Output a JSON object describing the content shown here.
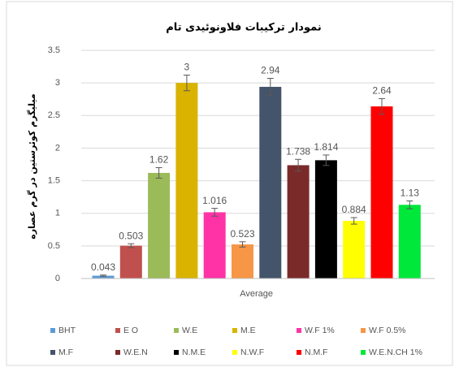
{
  "chart_data": {
    "type": "bar",
    "title": "نمودار ترکیبات فلاونوئیدی تام",
    "y_label": "میلیگرم کوئرستین در گرم عصاره",
    "categories": [
      "Average"
    ],
    "ylim": [
      0,
      3.5
    ],
    "yticks": [
      0,
      0.5,
      1,
      1.5,
      2,
      2.5,
      3,
      3.5
    ],
    "grid": true,
    "legend": "bottom",
    "series": [
      {
        "name": "BHT",
        "color": "#5b9bd5",
        "values": [
          0.043
        ],
        "errors": [
          0.01
        ]
      },
      {
        "name": "E O",
        "color": "#c0504d",
        "values": [
          0.503
        ],
        "errors": [
          0.03
        ]
      },
      {
        "name": "W.E",
        "color": "#9bbb59",
        "values": [
          1.62
        ],
        "errors": [
          0.08
        ]
      },
      {
        "name": "M.E",
        "color": "#d9b300",
        "values": [
          3
        ],
        "errors": [
          0.12
        ]
      },
      {
        "name": "W.F 1%",
        "color": "#ff33a6",
        "values": [
          1.016
        ],
        "errors": [
          0.06
        ]
      },
      {
        "name": "W.F 0.5%",
        "color": "#f79646",
        "values": [
          0.523
        ],
        "errors": [
          0.04
        ]
      },
      {
        "name": "M.F",
        "color": "#44546a",
        "values": [
          2.94
        ],
        "errors": [
          0.13
        ]
      },
      {
        "name": "W.E.N",
        "color": "#7b2a2a",
        "values": [
          1.738
        ],
        "errors": [
          0.09
        ]
      },
      {
        "name": "N.M.E",
        "color": "#000000",
        "values": [
          1.814
        ],
        "errors": [
          0.08
        ]
      },
      {
        "name": "N.W.F",
        "color": "#ffff00",
        "values": [
          0.884
        ],
        "errors": [
          0.05
        ]
      },
      {
        "name": "N.M.F",
        "color": "#ff0000",
        "values": [
          2.64
        ],
        "errors": [
          0.12
        ]
      },
      {
        "name": "W.E.N.CH 1%",
        "color": "#00e83a",
        "values": [
          1.13
        ],
        "errors": [
          0.06
        ]
      }
    ]
  }
}
